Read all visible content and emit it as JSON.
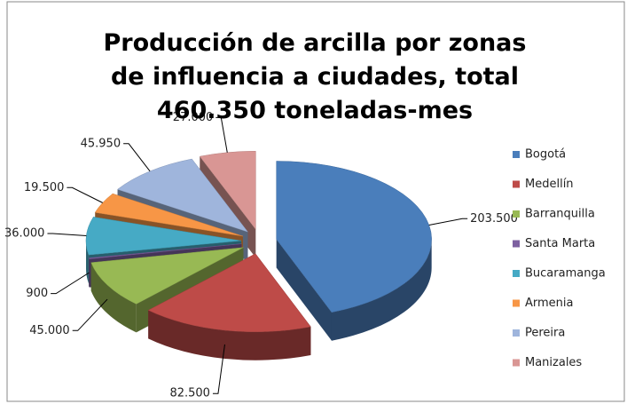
{
  "chart_data": {
    "type": "pie",
    "title": "Producción de arcilla por zonas de influencia a ciudades, total  460.350 toneladas-mes",
    "categories": [
      "Bogotá",
      "Medellín",
      "Barranquilla",
      "Santa Marta",
      "Bucaramanga",
      "Armenia",
      "Pereira",
      "Manizales"
    ],
    "values": [
      203500,
      82500,
      45000,
      900,
      36000,
      19500,
      45950,
      27000
    ],
    "value_labels": [
      "203.500",
      "82.500",
      "45.000",
      "900",
      "36.000",
      "19.500",
      "45.950",
      "27.000"
    ],
    "colors": [
      "#4a7ebb",
      "#be4b48",
      "#98b954",
      "#7d60a0",
      "#46aac5",
      "#f79646",
      "#9fb5dc",
      "#d99694"
    ],
    "legend": "right"
  }
}
